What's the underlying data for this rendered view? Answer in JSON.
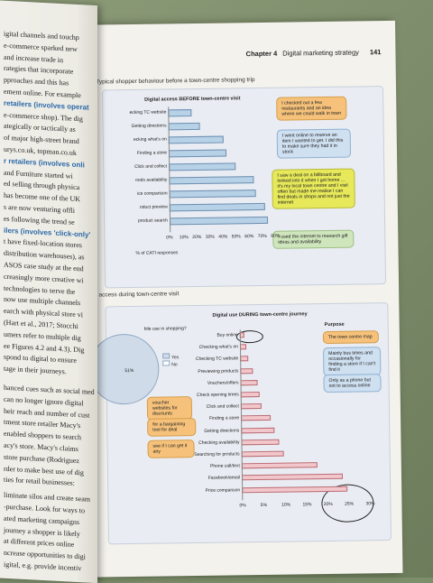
{
  "header": {
    "chapter": "Chapter 4",
    "chapter_title": "Digital marketing strategy",
    "page_number": "141"
  },
  "figure1": {
    "caption": "2  Typical shopper behaviour before a town-centre shopping trip",
    "title": "Digital access BEFORE town-centre visit",
    "xlabel": "% of CATI responses",
    "bubbles": [
      "I checked out a few restaurants and an idea where we could walk in town",
      "I went online to reserve an item I wanted to get. I did this to make sure they had it in stock",
      "I saw a deal on a billboard and looked into it when I got home ... it's my local town centre and I visit often but made me realise I can find deals in shops and not just the internet",
      "I used the internet to research gift ideas and availability"
    ]
  },
  "figure2": {
    "caption": "l access during town-centre visit",
    "title": "Digital use DURING town-centre journey",
    "purpose_label": "Purpose",
    "pie_label": "bile use in shopping?",
    "legend": [
      "Yes",
      "No"
    ],
    "pie_value": "51%",
    "bubbles_left": [
      "voucher websites for discounts",
      "for a bargaining tool for deal",
      "see if I can get it any"
    ],
    "bubbles_right": [
      "The town centre map",
      "Mainly bus times and occasionally for finding a store if I can't find it",
      "Only as a phone but not to access online"
    ]
  },
  "chart_data": [
    {
      "type": "bar",
      "title": "Digital access BEFORE town-centre visit",
      "xlabel": "% of CATI responses",
      "categories": [
        "ecking TC website",
        "Getting directions",
        "ecking what's on",
        "Finding a store",
        "Click and collect",
        "oods availability",
        "ice comparison",
        "oduct preview",
        "product search"
      ],
      "values": [
        18,
        24,
        42,
        44,
        51,
        65,
        66,
        73,
        75
      ],
      "ticks": [
        "0%",
        "10%",
        "20%",
        "30%",
        "40%",
        "50%",
        "60%",
        "70%",
        "80%"
      ],
      "xlim": [
        0,
        80
      ]
    },
    {
      "type": "bar",
      "title": "Digital use DURING town-centre journey",
      "categories": [
        "Buy online",
        "Checking what's on",
        "Checking TC website",
        "Previewing products",
        "Vouchers/offers",
        "Check opening times",
        "Click and collect",
        "Finding a store",
        "Getting directions",
        "Checking availability",
        "Searching for products",
        "Phone call/text",
        "Facebook/email",
        "Price comparison"
      ],
      "values": [
        1,
        1.5,
        2,
        3,
        4,
        4.5,
        5,
        7,
        8,
        9,
        10,
        18,
        24,
        25
      ],
      "ticks": [
        "0%",
        "5%",
        "10%",
        "15%",
        "20%",
        "25%",
        "30%"
      ],
      "xlim": [
        0,
        30
      ]
    }
  ],
  "left_page": {
    "lines": [
      "igital channels and touchp",
      "e-commerce sparked new",
      "and increase trade in",
      "rategies that incorporate",
      "pproaches and this has",
      "ement online. For example",
      "retailers (involves operat",
      "e-commerce shop). The dig",
      "ategically or tactically as",
      "of major high-street brand",
      "urys.co.uk, topman.co.uk",
      "r retailers (involves onli",
      "and Furniture started wi",
      "ed selling through physica",
      "has become one of the UK",
      "s are now venturing offli",
      "es following the trend se",
      "ilers (involves 'click-only'",
      "t have fixed-location stores",
      "distribution warehouses), as",
      "ASOS case study at the end",
      "creasingly more creative wi",
      "technologies to serve the",
      "now use multiple channels",
      "earch with physical store vi",
      "(Hart et al., 2017; Stocchi",
      "umers refer to multiple dig",
      "ee Figures 4.2 and 4.3). Dig",
      "spond to digital to ensure",
      "tage in their journeys.",
      "hanced cues such as social med",
      "can no longer ignore digital",
      "heir reach and number of cust",
      "tment store retailer Macy's",
      "enabled shoppers to search",
      "acy's store. Macy's claims",
      "store purchase (Rodriguez",
      "rder to make best use of dig",
      "ties for retail businesses:",
      "liminate silos and create seam",
      "-purchase. Look for ways to",
      "ated marketing campaigns",
      "journey a shopper is likely",
      "at different prices online",
      "ncrease opportunities to digi",
      "igital, e.g. provide incentiv"
    ]
  }
}
